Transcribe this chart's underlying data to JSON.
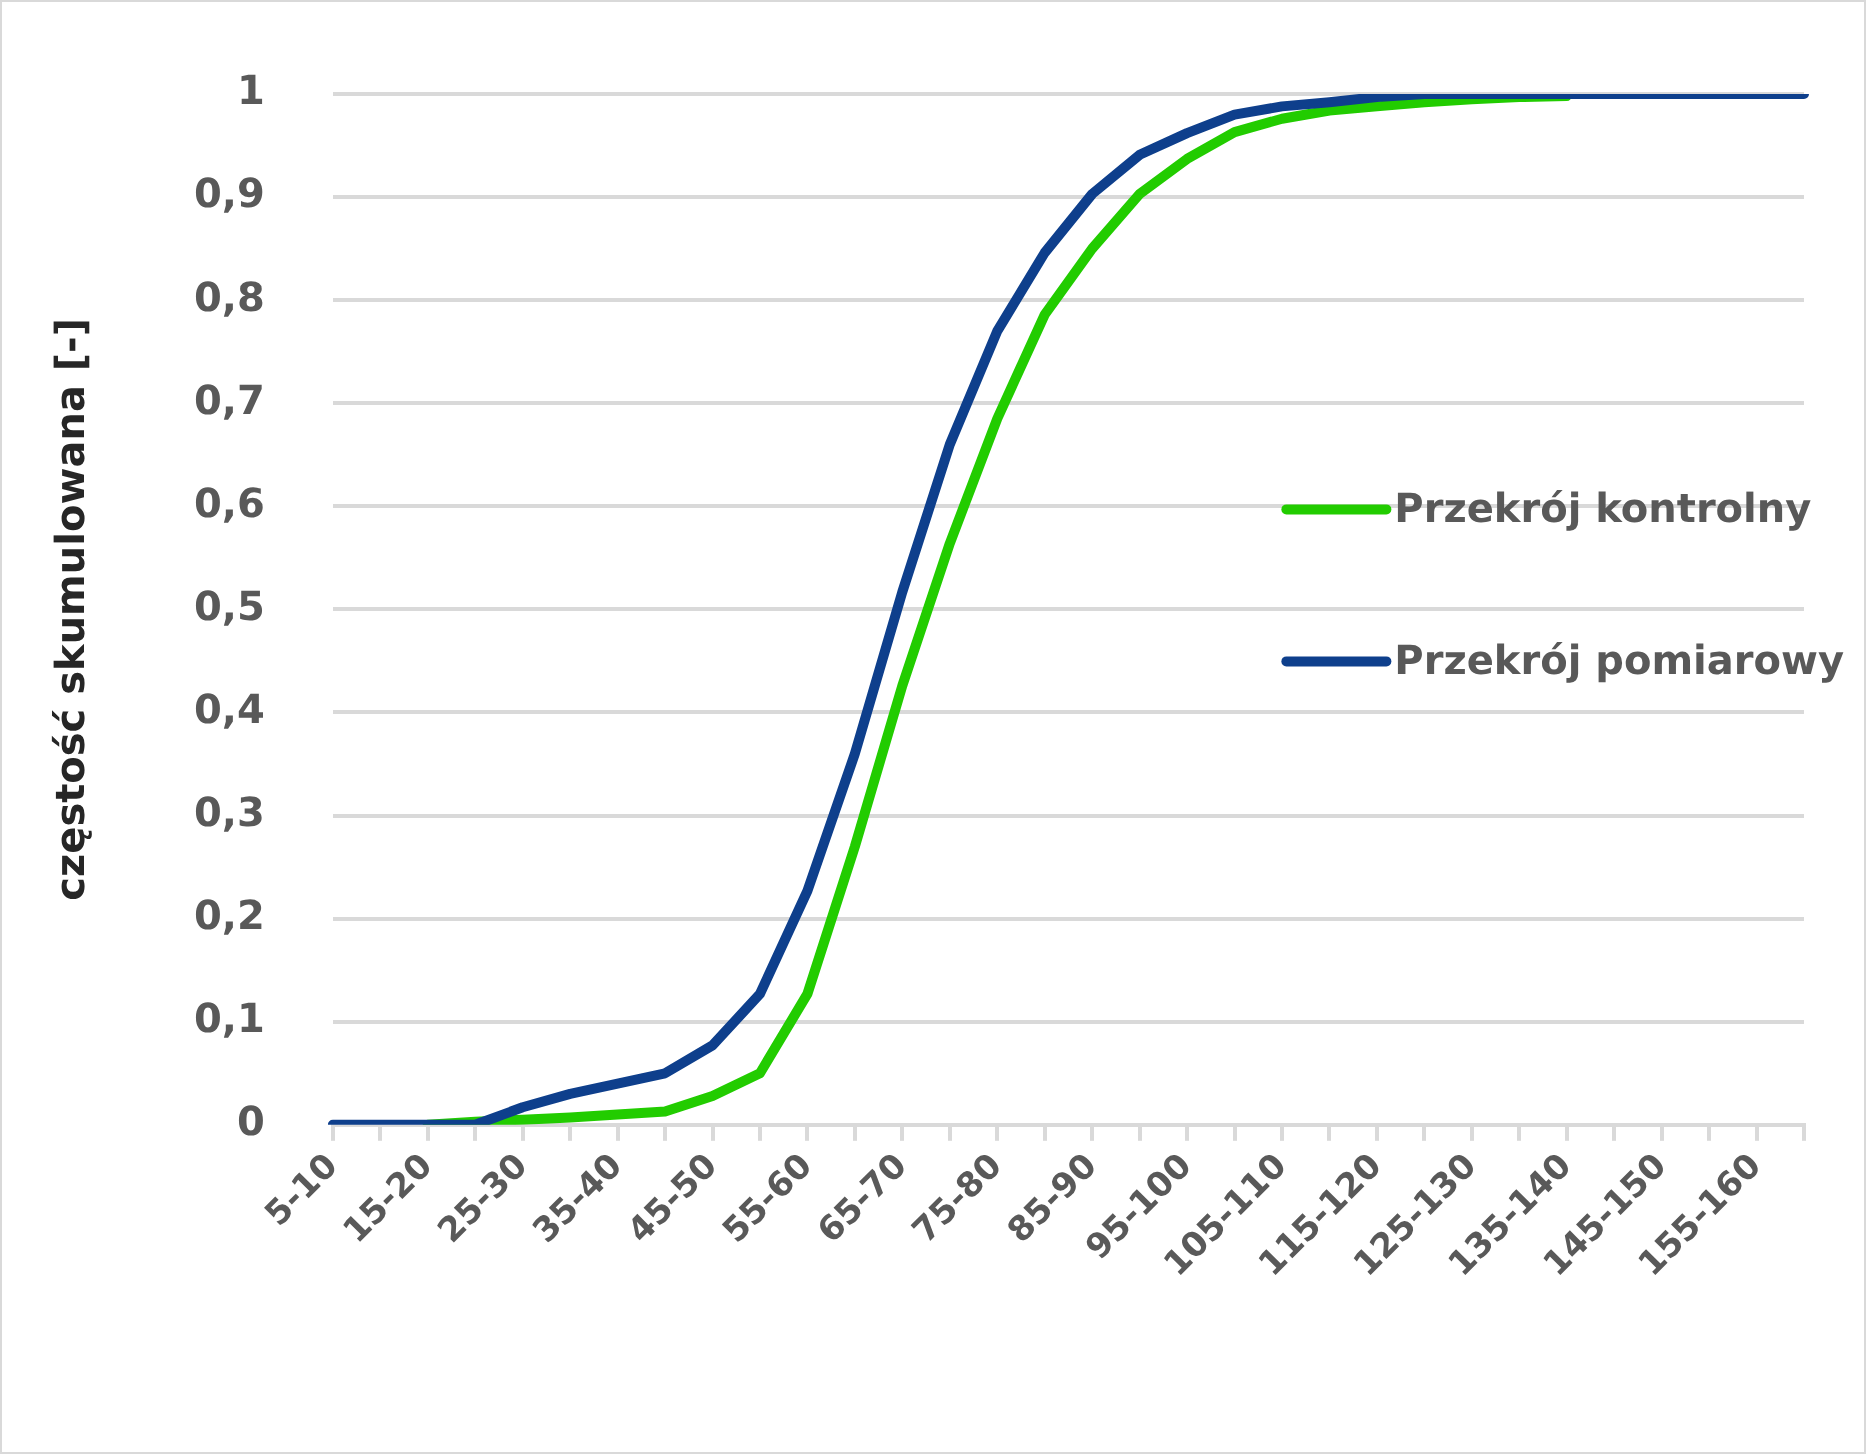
{
  "chart_data": {
    "type": "line",
    "ylabel": "częstość skumulowana [-]",
    "categories": [
      "5-10",
      null,
      "15-20",
      null,
      "25-30",
      null,
      "35-40",
      null,
      "45-50",
      null,
      "55-60",
      null,
      "65-70",
      null,
      "75-80",
      null,
      "85-90",
      null,
      "95-100",
      null,
      "105-110",
      null,
      "115-120",
      null,
      "125-130",
      null,
      "135-140",
      null,
      "145-150",
      null,
      "155-160",
      null
    ],
    "series": [
      {
        "name": "Przekrój kontrolny",
        "color": "#22cc00",
        "values": [
          null,
          null,
          0,
          0.003,
          0.005,
          0.007,
          0.01,
          0.013,
          0.028,
          0.05,
          0.127,
          0.27,
          0.426,
          0.564,
          0.685,
          0.786,
          0.85,
          0.903,
          0.937,
          0.963,
          0.976,
          0.984,
          0.988,
          0.992,
          0.995,
          0.997,
          0.998,
          null,
          null,
          null,
          null,
          null
        ]
      },
      {
        "name": "Przekrój pomiarowy",
        "color": "#0e3f8c",
        "values": [
          0,
          0,
          0,
          0,
          0.017,
          0.03,
          0.04,
          0.05,
          0.077,
          0.127,
          0.227,
          0.36,
          0.517,
          0.66,
          0.77,
          0.846,
          0.903,
          0.941,
          0.962,
          0.98,
          0.988,
          0.992,
          0.997,
          1,
          1,
          1,
          1,
          1,
          1,
          1,
          1,
          1
        ]
      }
    ],
    "ylim": [
      0,
      1
    ],
    "yticks": [
      0,
      {
        "value": 0.1,
        "label": "0,1"
      },
      {
        "value": 0.2,
        "label": "0,2"
      },
      {
        "value": 0.3,
        "label": "0,3"
      },
      {
        "value": 0.4,
        "label": "0,4"
      },
      {
        "value": 0.5,
        "label": "0,5"
      },
      {
        "value": 0.6,
        "label": "0,6"
      },
      {
        "value": 0.7,
        "label": "0,7"
      },
      {
        "value": 0.8,
        "label": "0,8"
      },
      {
        "value": 0.9,
        "label": "0,9"
      },
      1
    ],
    "grid": "y",
    "legend": "right",
    "marker": "none",
    "line_style": "solid"
  }
}
